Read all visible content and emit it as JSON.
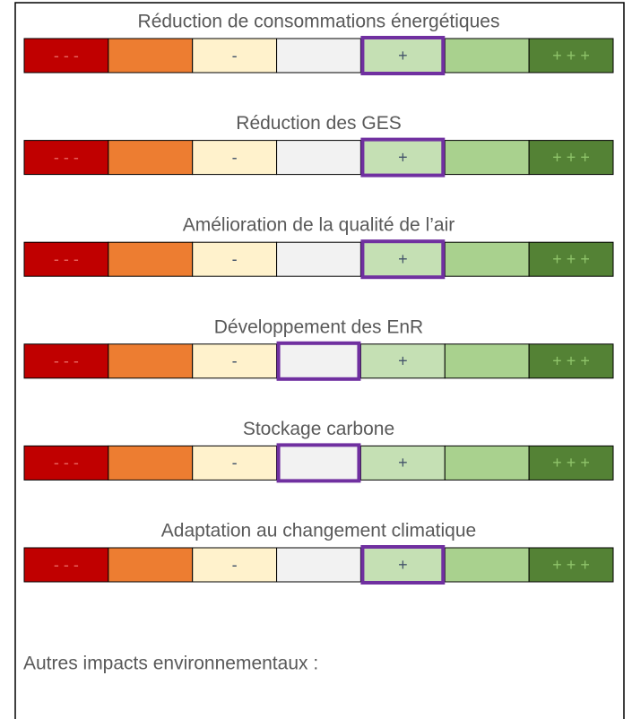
{
  "scale": {
    "cells": [
      {
        "label": "- - -",
        "color": "#c00000",
        "text_color": "#e8635f"
      },
      {
        "color": "#ed7d31"
      },
      {
        "label": "-",
        "color": "#fff2cc",
        "text_color": "#44546a"
      },
      {
        "color": "#f2f2f2"
      },
      {
        "label": "+",
        "color": "#c5e0b4",
        "text_color": "#44546a"
      },
      {
        "color": "#a9d18e"
      },
      {
        "label": "+ + +",
        "color": "#548235",
        "text_color": "#8fc46a"
      }
    ],
    "selected_color": "#7030a0"
  },
  "rows": [
    {
      "title": "Réduction de consommations énergétiques",
      "selected": 4
    },
    {
      "title": "Réduction des GES",
      "selected": 4
    },
    {
      "title": "Amélioration de la qualité de l’air",
      "selected": 4
    },
    {
      "title": "Développement des EnR",
      "selected": 3
    },
    {
      "title": "Stockage carbone",
      "selected": 3
    },
    {
      "title": "Adaptation au changement climatique",
      "selected": 4
    }
  ],
  "footer": "Autres impacts environnementaux :"
}
